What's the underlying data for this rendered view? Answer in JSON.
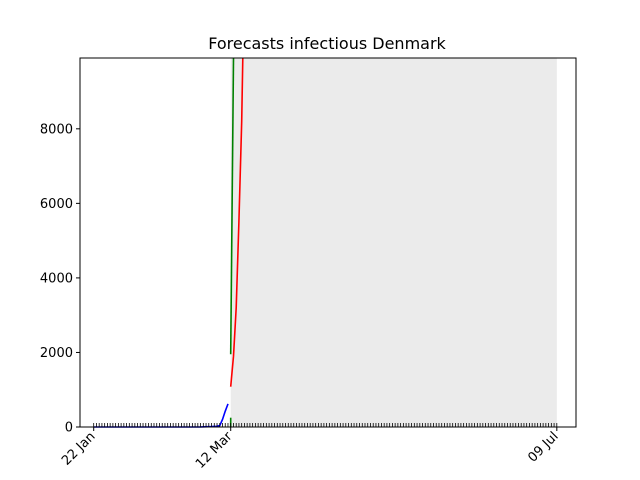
{
  "chart_data": {
    "type": "line",
    "title": "Forecasts infectious Denmark",
    "xlabel": "",
    "ylabel": "",
    "x_axis": {
      "kind": "date",
      "start": "2020-01-22",
      "end": "2020-07-09"
    },
    "xticks": [
      {
        "date": "2020-01-22",
        "label": "22 Jan"
      },
      {
        "date": "2020-03-12",
        "label": "12 Mar"
      },
      {
        "date": "2020-07-09",
        "label": "09 Jul"
      }
    ],
    "xlim": [
      "2020-01-17",
      "2020-07-16"
    ],
    "ylim": [
      0,
      9900
    ],
    "yticks": [
      0,
      2000,
      4000,
      6000,
      8000
    ],
    "forecast_region": {
      "start": "2020-03-12",
      "end": "2020-07-09",
      "color": "#ebebeb"
    },
    "series": [
      {
        "color": "#0000ff",
        "points": [
          {
            "x": "2020-01-22",
            "y": 0
          },
          {
            "x": "2020-02-20",
            "y": 0
          },
          {
            "x": "2020-03-01",
            "y": 2
          },
          {
            "x": "2020-03-05",
            "y": 10
          },
          {
            "x": "2020-03-07",
            "y": 20
          },
          {
            "x": "2020-03-08",
            "y": 40
          },
          {
            "x": "2020-03-09",
            "y": 200
          },
          {
            "x": "2020-03-10",
            "y": 420
          },
          {
            "x": "2020-03-11",
            "y": 620
          }
        ]
      },
      {
        "color": "#ff0000",
        "points": [
          {
            "x": "2020-03-12",
            "y": 1080
          },
          {
            "x": "2020-03-13",
            "y": 1900
          },
          {
            "x": "2020-03-14",
            "y": 3200
          },
          {
            "x": "2020-03-15",
            "y": 5500
          },
          {
            "x": "2020-03-16",
            "y": 8200
          },
          {
            "x": "2020-03-16.4",
            "y": 9900
          }
        ]
      },
      {
        "color": "#008000",
        "points": [
          {
            "x": "2020-03-12",
            "y": 1950
          },
          {
            "x": "2020-03-13",
            "y": 9900
          }
        ],
        "extra_segment": [
          {
            "x": "2020-03-12",
            "y": 0
          },
          {
            "x": "2020-03-12",
            "y": 250
          }
        ]
      }
    ]
  }
}
